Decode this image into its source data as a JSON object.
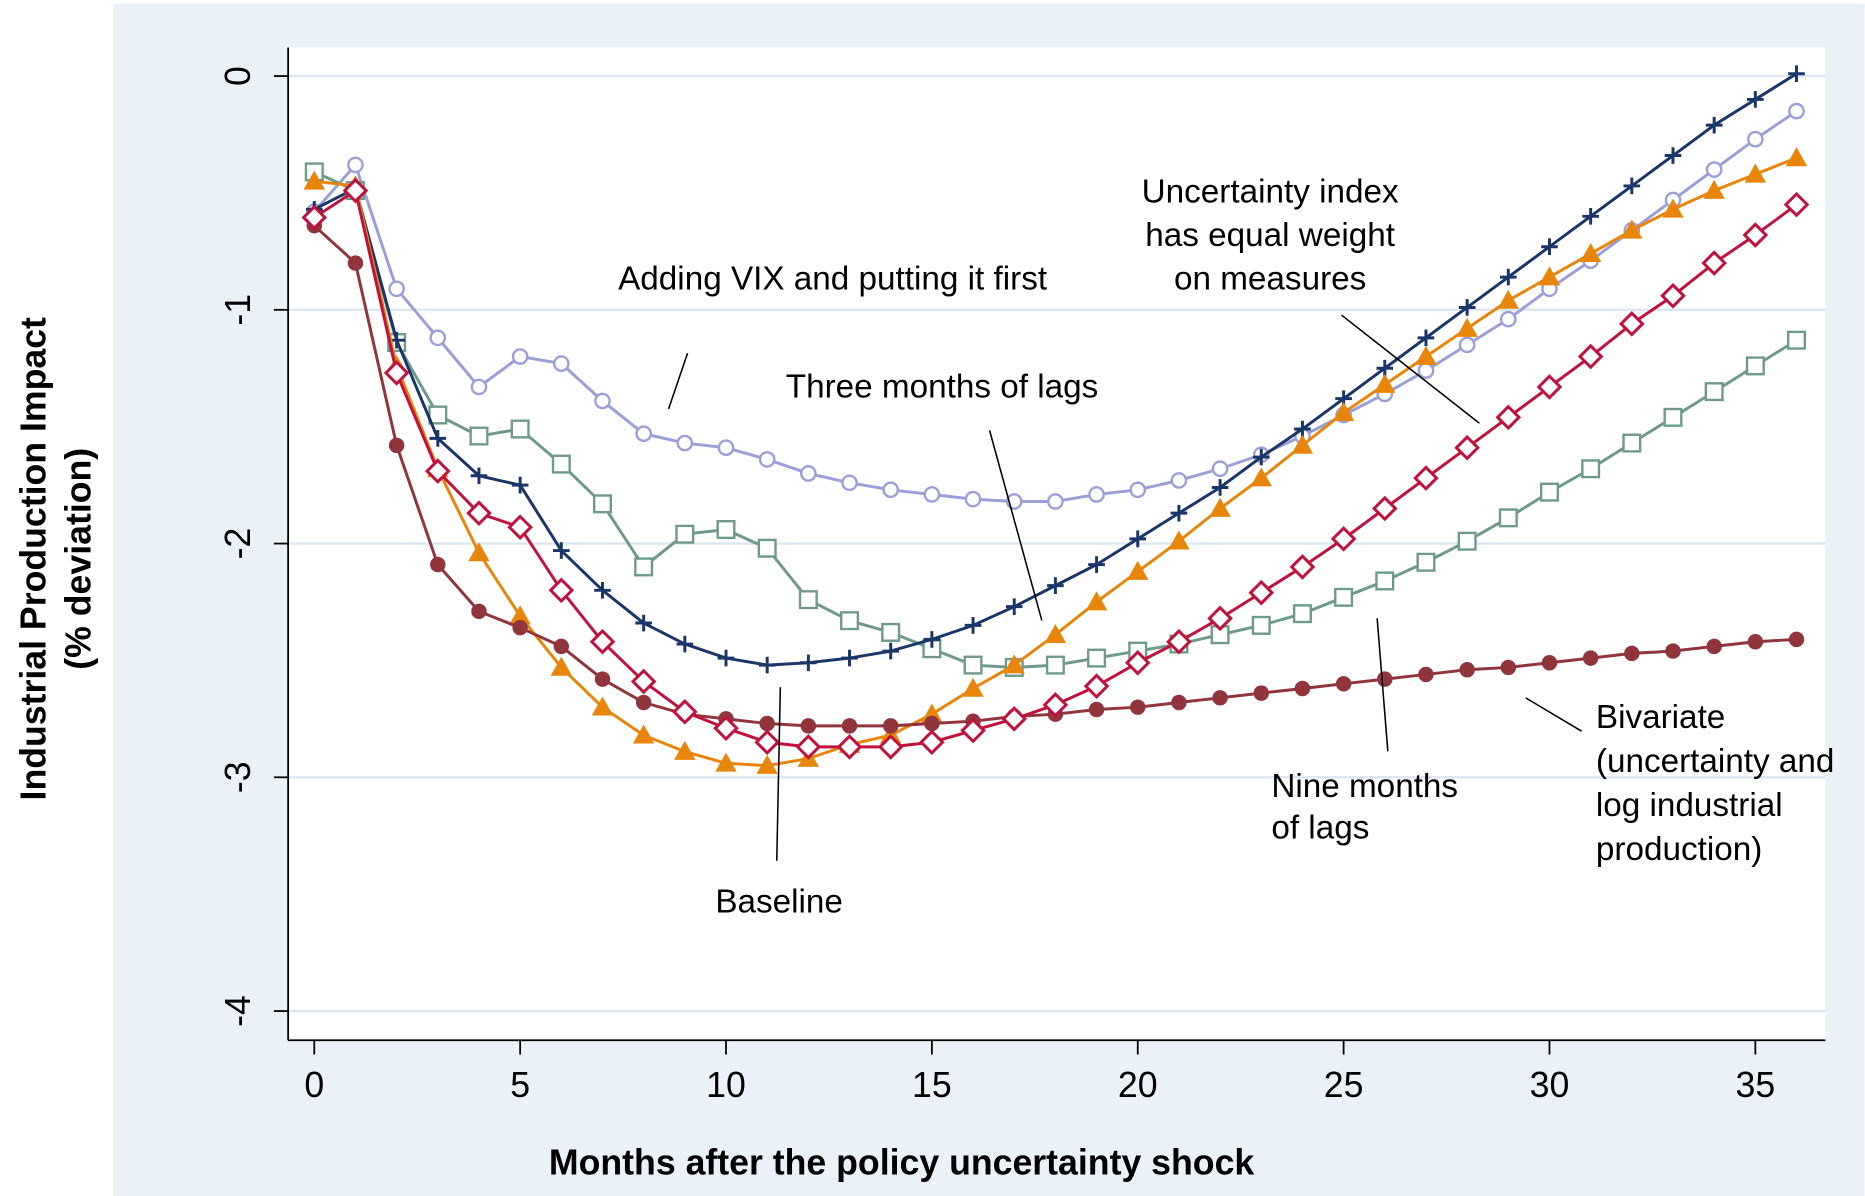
{
  "chart_data": {
    "type": "line",
    "x_label": "Months after the policy uncertainty shock",
    "y_label": [
      "Industrial Production Impact",
      "(% deviation)"
    ],
    "x": [
      0,
      1,
      2,
      3,
      4,
      5,
      6,
      7,
      8,
      9,
      10,
      11,
      12,
      13,
      14,
      15,
      16,
      17,
      18,
      19,
      20,
      21,
      22,
      23,
      24,
      25,
      26,
      27,
      28,
      29,
      30,
      31,
      32,
      33,
      34,
      35,
      36
    ],
    "xlim": [
      -0.635,
      36.7
    ],
    "ylim": [
      -4.125,
      0.122
    ],
    "xticks": [
      0,
      5,
      10,
      15,
      20,
      25,
      30,
      35
    ],
    "yticks": [
      0,
      -1,
      -2,
      -3,
      -4
    ],
    "grid": true,
    "series": [
      {
        "color": "#9b9fd8",
        "marker": "hollow-circle",
        "values": [
          -0.58,
          -0.38,
          -0.91,
          -1.12,
          -1.33,
          -1.2,
          -1.23,
          -1.39,
          -1.53,
          -1.57,
          -1.59,
          -1.64,
          -1.7,
          -1.74,
          -1.77,
          -1.79,
          -1.81,
          -1.82,
          -1.82,
          -1.79,
          -1.77,
          -1.73,
          -1.68,
          -1.62,
          -1.54,
          -1.45,
          -1.36,
          -1.26,
          -1.15,
          -1.04,
          -0.91,
          -0.79,
          -0.66,
          -0.53,
          -0.4,
          -0.27,
          -0.15
        ]
      },
      {
        "color": "#6e9a8a",
        "marker": "hollow-square",
        "values": [
          -0.41,
          -0.49,
          -1.14,
          -1.45,
          -1.54,
          -1.51,
          -1.66,
          -1.83,
          -2.1,
          -1.96,
          -1.94,
          -2.02,
          -2.24,
          -2.33,
          -2.38,
          -2.45,
          -2.52,
          -2.53,
          -2.52,
          -2.49,
          -2.46,
          -2.43,
          -2.39,
          -2.35,
          -2.3,
          -2.23,
          -2.16,
          -2.08,
          -1.99,
          -1.89,
          -1.78,
          -1.68,
          -1.57,
          -1.46,
          -1.35,
          -1.24,
          -1.13
        ]
      },
      {
        "color": "#1a3668",
        "marker": "plus",
        "values": [
          -0.57,
          -0.48,
          -1.13,
          -1.55,
          -1.71,
          -1.75,
          -2.03,
          -2.2,
          -2.34,
          -2.43,
          -2.49,
          -2.52,
          -2.51,
          -2.49,
          -2.46,
          -2.41,
          -2.35,
          -2.27,
          -2.18,
          -2.09,
          -1.98,
          -1.87,
          -1.76,
          -1.63,
          -1.51,
          -1.38,
          -1.25,
          -1.12,
          -0.99,
          -0.86,
          -0.73,
          -0.6,
          -0.47,
          -0.34,
          -0.21,
          -0.1,
          0.01
        ]
      },
      {
        "color": "#e8860c",
        "marker": "triangle",
        "values": [
          -0.45,
          -0.47,
          -1.24,
          -1.68,
          -2.04,
          -2.31,
          -2.53,
          -2.7,
          -2.82,
          -2.89,
          -2.94,
          -2.95,
          -2.92,
          -2.86,
          -2.82,
          -2.73,
          -2.62,
          -2.52,
          -2.39,
          -2.25,
          -2.12,
          -1.99,
          -1.85,
          -1.72,
          -1.58,
          -1.44,
          -1.32,
          -1.2,
          -1.08,
          -0.96,
          -0.86,
          -0.76,
          -0.66,
          -0.57,
          -0.49,
          -0.42,
          -0.35
        ]
      },
      {
        "color": "#90353b",
        "marker": "dot",
        "values": [
          -0.64,
          -0.8,
          -1.58,
          -2.09,
          -2.29,
          -2.36,
          -2.44,
          -2.58,
          -2.68,
          -2.73,
          -2.75,
          -2.77,
          -2.78,
          -2.78,
          -2.78,
          -2.77,
          -2.76,
          -2.74,
          -2.73,
          -2.71,
          -2.7,
          -2.68,
          -2.66,
          -2.64,
          -2.62,
          -2.6,
          -2.58,
          -2.56,
          -2.54,
          -2.53,
          -2.51,
          -2.49,
          -2.47,
          -2.46,
          -2.44,
          -2.42,
          -2.41
        ]
      },
      {
        "color": "#c1113d",
        "marker": "hollow-diamond",
        "values": [
          -0.605,
          -0.49,
          -1.27,
          -1.69,
          -1.87,
          -1.93,
          -2.2,
          -2.42,
          -2.59,
          -2.72,
          -2.79,
          -2.85,
          -2.87,
          -2.87,
          -2.87,
          -2.85,
          -2.8,
          -2.75,
          -2.69,
          -2.61,
          -2.51,
          -2.42,
          -2.32,
          -2.21,
          -2.1,
          -1.98,
          -1.85,
          -1.72,
          -1.59,
          -1.46,
          -1.33,
          -1.2,
          -1.06,
          -0.94,
          -0.8,
          -0.68,
          -0.55
        ]
      }
    ],
    "annotations": [
      [
        "Adding VIX and putting it first"
      ],
      [
        "Uncertainty index",
        "has equal weight",
        "on measures"
      ],
      [
        "Three months of lags"
      ],
      [
        "Baseline"
      ],
      [
        "Nine months",
        "of lags"
      ],
      [
        "Bivariate",
        "(uncertainty and",
        "log industrial",
        "production)"
      ]
    ]
  }
}
